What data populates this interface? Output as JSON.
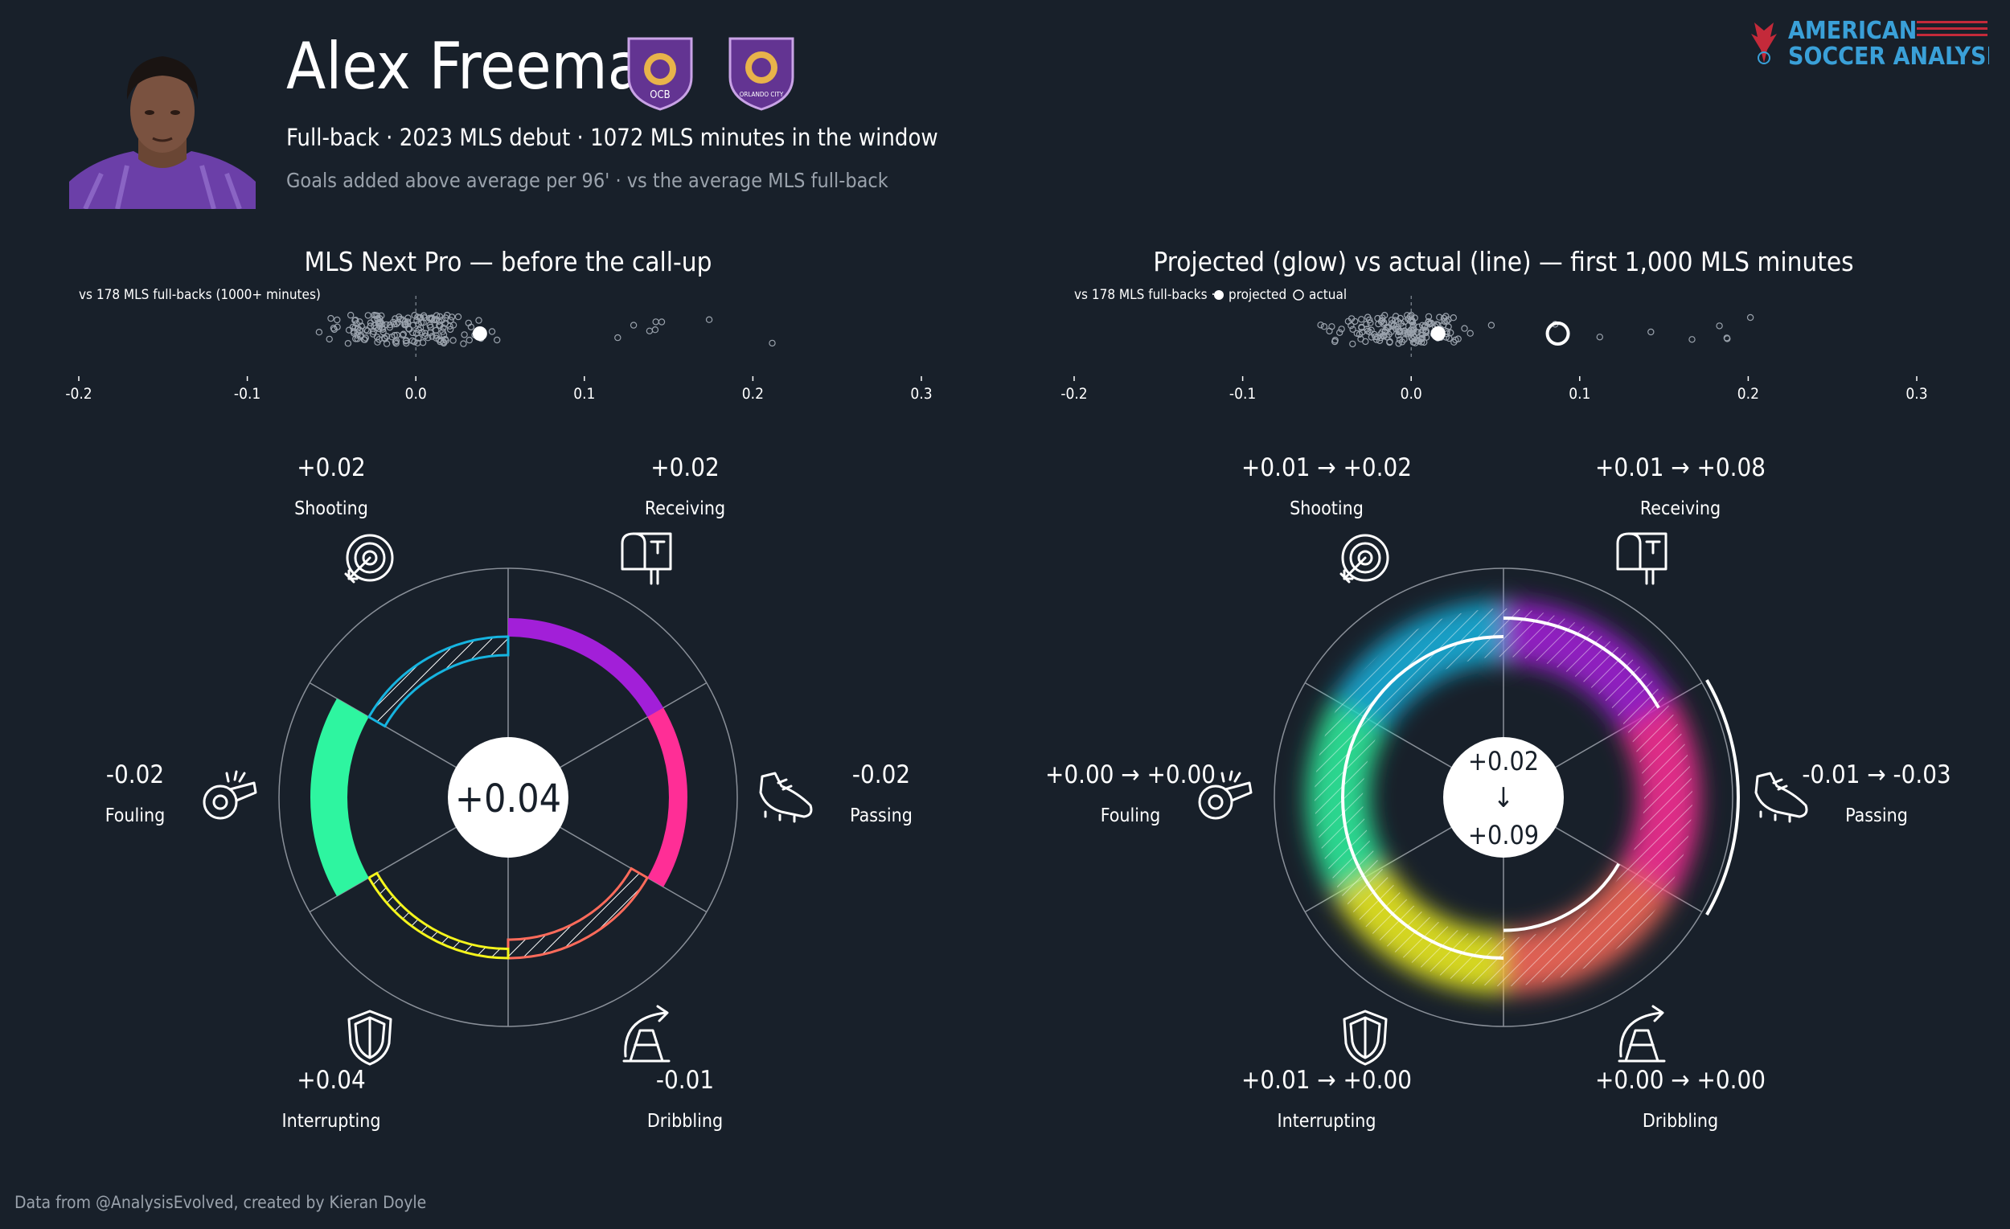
{
  "player": {
    "name": "Alex Freeman",
    "subtitle": "Full-back · 2023 MLS debut · 1072 MLS minutes in the window",
    "note": "Goals added above average per 96' · vs the average MLS full-back"
  },
  "brand": {
    "line1": "AMERICAN",
    "line2": "SOCCER ANALYSIS"
  },
  "badges": {
    "left": "OCB",
    "right": "ORLANDO CITY"
  },
  "footer": "Data from @AnalysisEvolved, created by Kieran Doyle",
  "colors": {
    "background": "#18202a",
    "Shooting": "#a21fd8",
    "Receiving": "#ff2e96",
    "Passing": "#ff6b5b",
    "Dribbling": "#f5f51c",
    "Interrupting": "#2ef5a0",
    "Fouling": "#16b4e0"
  },
  "left_panel": {
    "title": "MLS Next Pro — before the call-up",
    "strip_label": "vs 178 MLS full-backs (1000+ minutes)",
    "center_value": "+0.04",
    "categories": [
      {
        "name": "Shooting",
        "label": "+0.02",
        "icon": "target-icon"
      },
      {
        "name": "Receiving",
        "label": "+0.02",
        "icon": "mailbox-icon"
      },
      {
        "name": "Passing",
        "label": "-0.02",
        "icon": "boot-icon"
      },
      {
        "name": "Dribbling",
        "label": "-0.01",
        "icon": "cone-icon"
      },
      {
        "name": "Interrupting",
        "label": "+0.04",
        "icon": "shield-icon"
      },
      {
        "name": "Fouling",
        "label": "-0.02",
        "icon": "whistle-icon"
      }
    ]
  },
  "right_panel": {
    "title": "Projected (glow) vs actual (line) — first 1,000 MLS minutes",
    "strip_label": "vs 178 MLS full-backs ·",
    "legend_projected": "projected",
    "legend_actual": "actual",
    "center_projected": "+0.02",
    "center_arrow": "↓",
    "center_actual": "+0.09",
    "categories": [
      {
        "name": "Shooting",
        "label": "+0.01 → +0.02",
        "icon": "target-icon"
      },
      {
        "name": "Receiving",
        "label": "+0.01 → +0.08",
        "icon": "mailbox-icon"
      },
      {
        "name": "Passing",
        "label": "-0.01 → -0.03",
        "icon": "boot-icon"
      },
      {
        "name": "Dribbling",
        "label": "+0.00 → +0.00",
        "icon": "cone-icon"
      },
      {
        "name": "Interrupting",
        "label": "+0.01 → +0.00",
        "icon": "shield-icon"
      },
      {
        "name": "Fouling",
        "label": "+0.00 → +0.00",
        "icon": "whistle-icon"
      }
    ]
  },
  "chart_data": [
    {
      "type": "scatter",
      "title": "MLS Next Pro — before the call-up",
      "xlim": [
        -0.2,
        0.3
      ],
      "xticks": [
        "-0.2",
        "-0.1",
        "0.0",
        "0.1",
        "0.2",
        "0.3"
      ],
      "highlight": 0.038,
      "population_points": 178
    },
    {
      "type": "radial-bar",
      "title": "MLS Next Pro — before the call-up",
      "categories": [
        "Shooting",
        "Receiving",
        "Passing",
        "Dribbling",
        "Interrupting",
        "Fouling"
      ],
      "values": [
        0.02,
        0.02,
        -0.02,
        -0.01,
        0.04,
        -0.02
      ],
      "total": 0.04
    },
    {
      "type": "scatter",
      "title": "Projected (glow) vs actual (line) — first 1,000 MLS minutes",
      "xlim": [
        -0.2,
        0.3
      ],
      "xticks": [
        "-0.2",
        "-0.1",
        "0.0",
        "0.1",
        "0.2",
        "0.3"
      ],
      "projected": 0.016,
      "actual": 0.087,
      "population_points": 178
    },
    {
      "type": "radial-bar",
      "title": "Projected (glow) vs actual (line) — first 1,000 MLS minutes",
      "categories": [
        "Shooting",
        "Receiving",
        "Passing",
        "Dribbling",
        "Interrupting",
        "Fouling"
      ],
      "series": [
        {
          "name": "projected",
          "values": [
            0.01,
            0.01,
            -0.01,
            0.0,
            0.01,
            0.0
          ]
        },
        {
          "name": "actual",
          "values": [
            0.02,
            0.08,
            -0.03,
            0.0,
            0.0,
            0.0
          ]
        }
      ],
      "total_projected": 0.02,
      "total_actual": 0.09
    }
  ]
}
